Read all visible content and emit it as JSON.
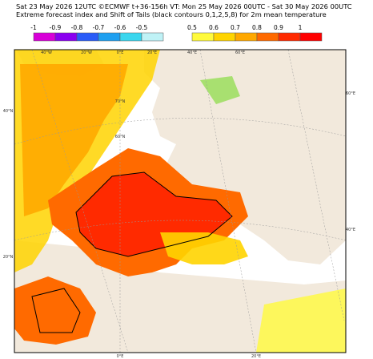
{
  "header": {
    "line1": "Sat 23 May 2026 12UTC ©ECMWF t+36-156h  VT: Mon 25 May 2026 00UTC - Sat 30 May 2026 00UTC",
    "line2": "Extreme forecast index and Shift of Tails (black contours 0,1,2,5,8) for 2m mean temperature"
  },
  "legend": {
    "cold": [
      {
        "label": -1,
        "color": "#d800d8"
      },
      {
        "label": -0.9,
        "color": "#8a00f0"
      },
      {
        "label": -0.8,
        "color": "#2a5cf8"
      },
      {
        "label": -0.7,
        "color": "#1fa0f0"
      },
      {
        "label": -0.6,
        "color": "#3ad6ee"
      },
      {
        "label": -0.5,
        "color": "#bff2f6"
      }
    ],
    "warm": [
      {
        "label": 0.5,
        "color": "#fffa3c"
      },
      {
        "label": 0.6,
        "color": "#ffd400"
      },
      {
        "label": 0.7,
        "color": "#ffa800"
      },
      {
        "label": 0.8,
        "color": "#ff6a00"
      },
      {
        "label": 0.9,
        "color": "#ff2a00"
      },
      {
        "label": 1,
        "color": "#ff0000"
      }
    ]
  },
  "map": {
    "labels": [
      "40°W",
      "20°W",
      "0°E",
      "20°E",
      "40°E",
      "60°E",
      "70°N",
      "60°N",
      "40°N",
      "20°N",
      "60°E",
      "40°E",
      "0°E",
      "20°E"
    ]
  }
}
